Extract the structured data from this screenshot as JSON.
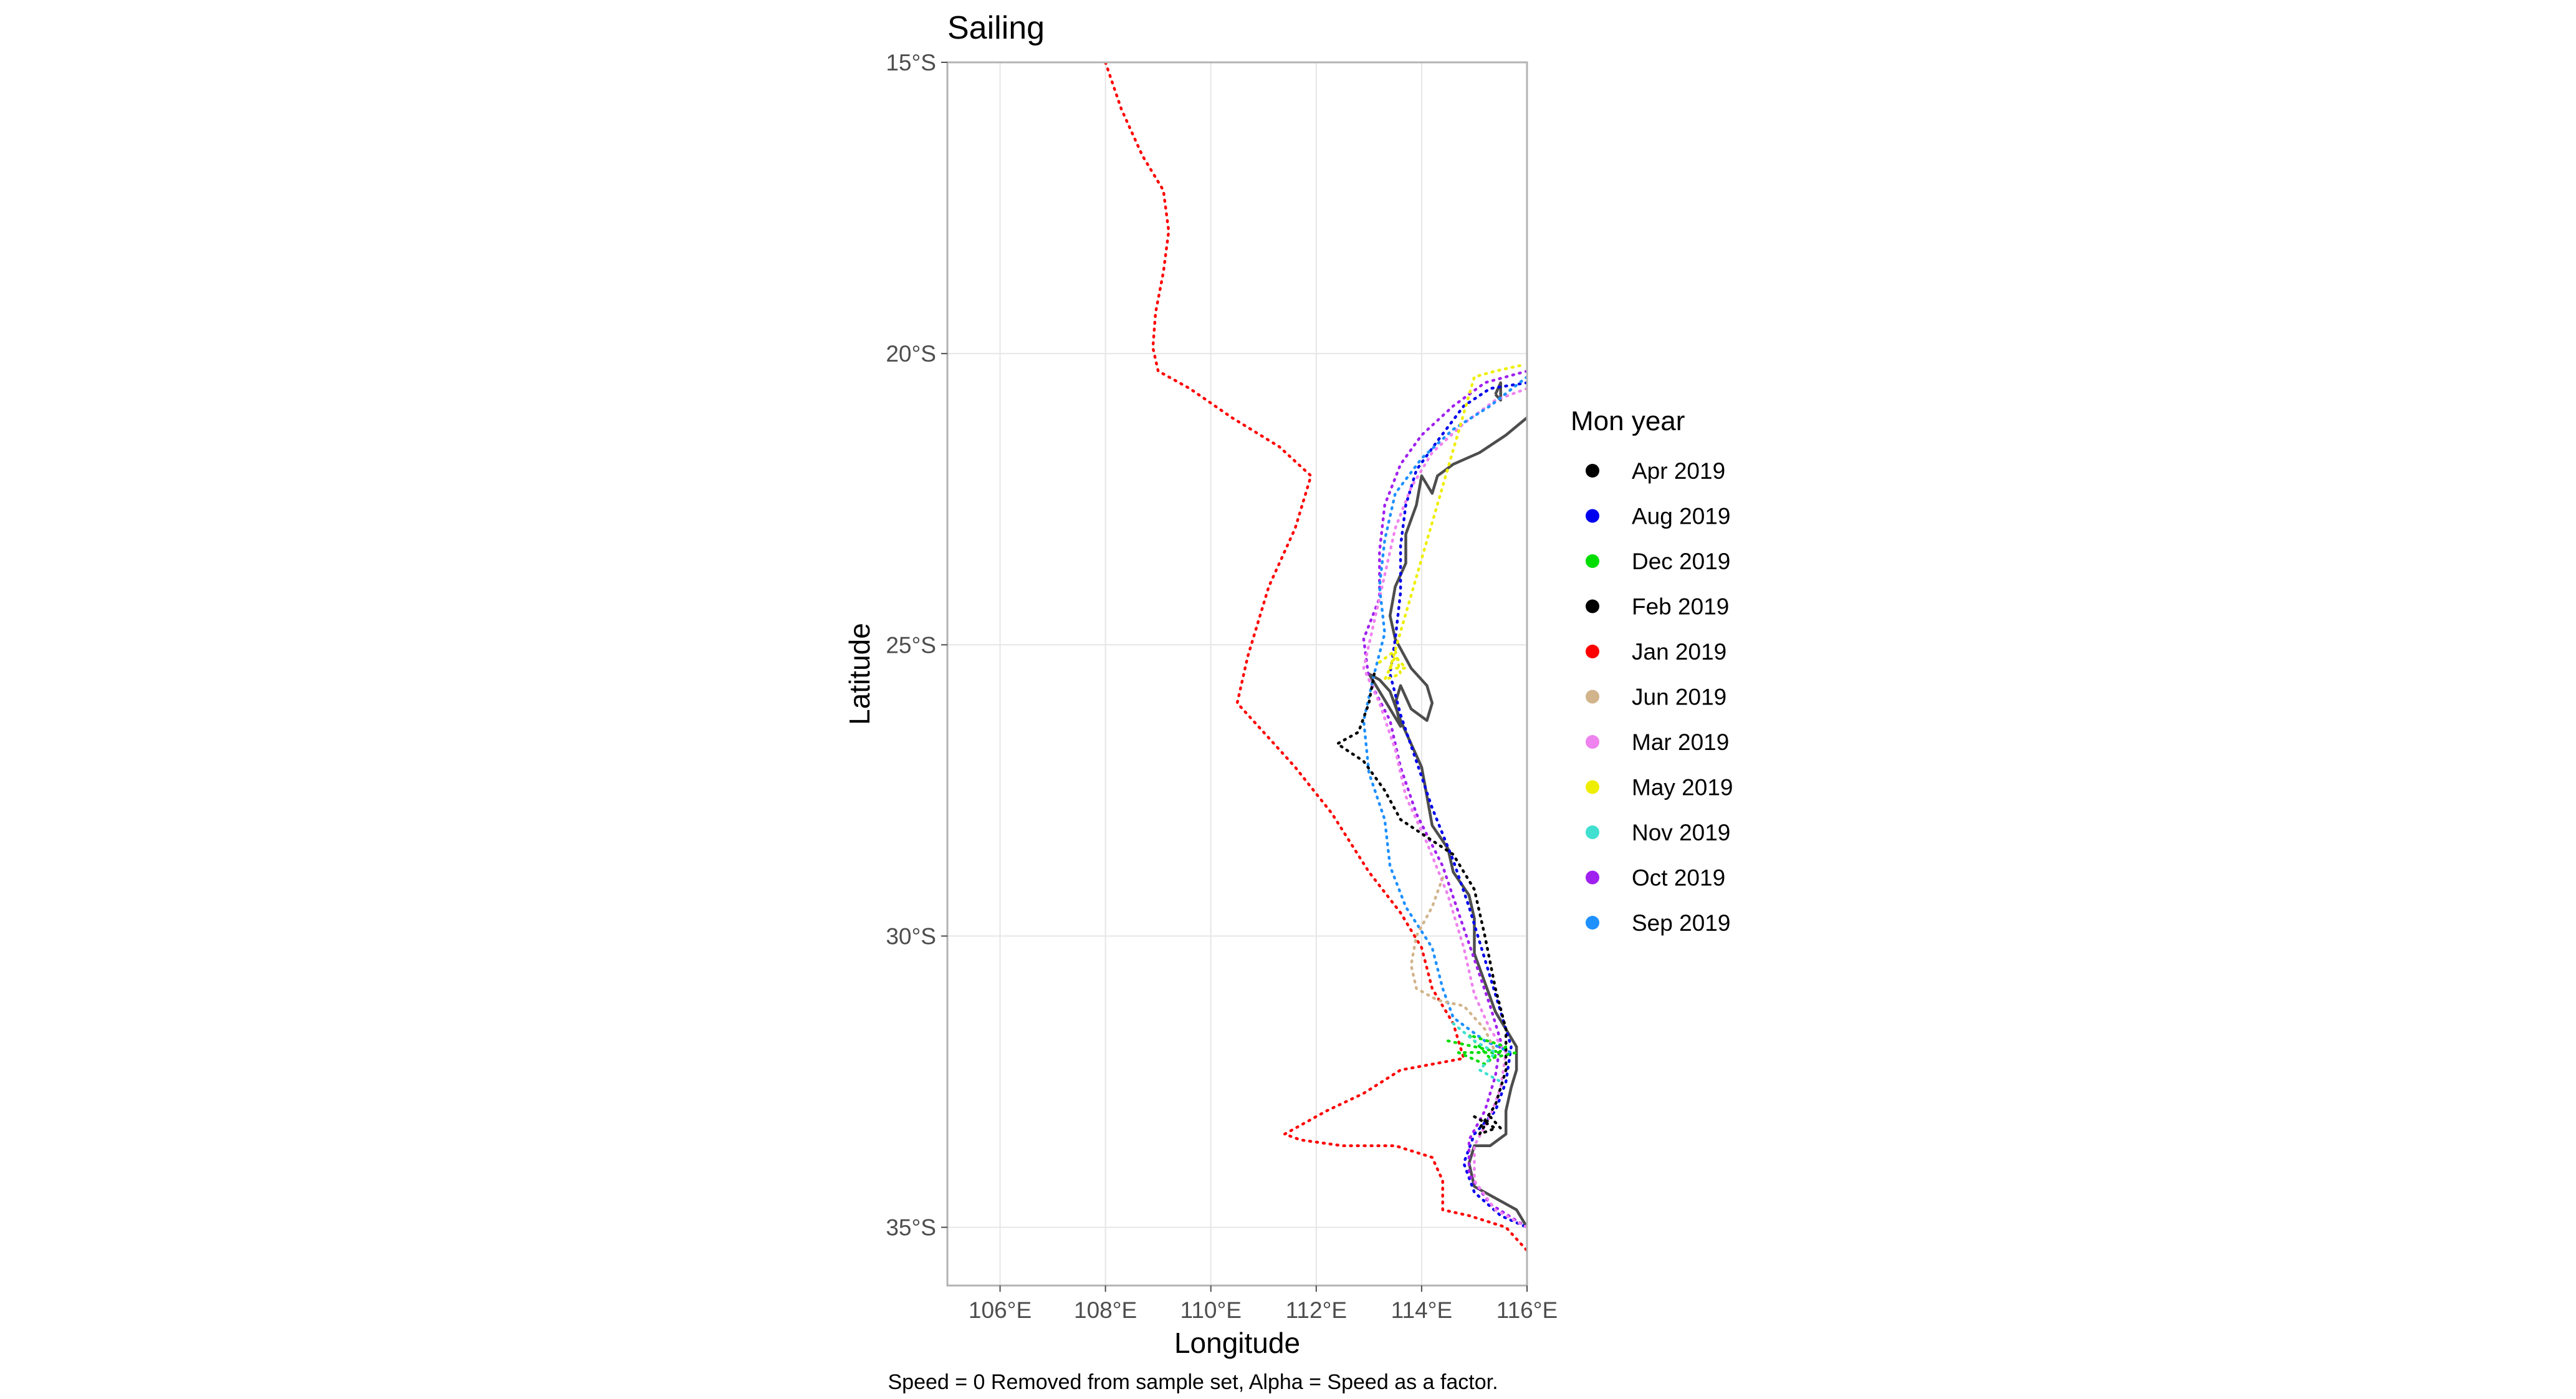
{
  "chart_data": {
    "type": "line",
    "title": "Sailing",
    "xlabel": "Longitude",
    "ylabel": "Latitude",
    "caption": "Speed = 0 Removed from sample set, Alpha = Speed as a factor.",
    "xlim": [
      105,
      116
    ],
    "ylim": [
      -36,
      -15
    ],
    "x_ticks": [
      106,
      108,
      110,
      112,
      114,
      116
    ],
    "x_tick_labels": [
      "106°E",
      "108°E",
      "110°E",
      "112°E",
      "114°E",
      "116°E"
    ],
    "y_ticks": [
      -15,
      -20,
      -25,
      -30,
      -35
    ],
    "y_tick_labels": [
      "15°S",
      "20°S",
      "25°S",
      "30°S",
      "35°S"
    ],
    "grid": true,
    "legend": {
      "title": "Mon year",
      "position": "right",
      "entries": [
        {
          "label": "Apr 2019",
          "color": "#000000"
        },
        {
          "label": "Aug 2019",
          "color": "#0000ee"
        },
        {
          "label": "Dec 2019",
          "color": "#00dd00"
        },
        {
          "label": "Feb 2019",
          "color": "#000000"
        },
        {
          "label": "Jan 2019",
          "color": "#ff0000"
        },
        {
          "label": "Jun 2019",
          "color": "#d2b48c"
        },
        {
          "label": "Mar 2019",
          "color": "#ee82ee"
        },
        {
          "label": "May 2019",
          "color": "#eeee00"
        },
        {
          "label": "Nov 2019",
          "color": "#40e0d0"
        },
        {
          "label": "Oct 2019",
          "color": "#a020f0"
        },
        {
          "label": "Sep 2019",
          "color": "#1e90ff"
        }
      ]
    },
    "coastline": [
      [
        [
          116.0,
          -21.1
        ],
        [
          115.6,
          -21.4
        ],
        [
          115.1,
          -21.7
        ],
        [
          114.6,
          -21.9
        ],
        [
          114.3,
          -22.1
        ],
        [
          114.2,
          -22.4
        ],
        [
          114.0,
          -22.1
        ],
        [
          113.9,
          -22.6
        ],
        [
          113.7,
          -23.1
        ],
        [
          113.7,
          -23.6
        ],
        [
          113.5,
          -24.0
        ],
        [
          113.4,
          -24.5
        ],
        [
          113.5,
          -24.9
        ],
        [
          113.8,
          -25.4
        ],
        [
          114.1,
          -25.7
        ],
        [
          114.2,
          -26.0
        ],
        [
          114.1,
          -26.3
        ],
        [
          113.8,
          -26.1
        ],
        [
          113.6,
          -25.7
        ],
        [
          113.5,
          -26.0
        ],
        [
          113.6,
          -26.4
        ],
        [
          113.4,
          -26.1
        ],
        [
          113.2,
          -25.8
        ],
        [
          113.0,
          -25.5
        ],
        [
          113.2,
          -25.6
        ],
        [
          113.4,
          -25.8
        ],
        [
          113.6,
          -26.3
        ],
        [
          113.8,
          -26.7
        ],
        [
          114.0,
          -27.1
        ],
        [
          114.1,
          -27.6
        ],
        [
          114.2,
          -28.1
        ],
        [
          114.5,
          -28.5
        ],
        [
          114.6,
          -28.9
        ],
        [
          114.9,
          -29.3
        ],
        [
          115.0,
          -29.7
        ],
        [
          115.0,
          -30.3
        ],
        [
          115.2,
          -30.8
        ],
        [
          115.4,
          -31.3
        ],
        [
          115.6,
          -31.6
        ],
        [
          115.8,
          -31.9
        ],
        [
          115.8,
          -32.3
        ],
        [
          115.7,
          -32.6
        ],
        [
          115.6,
          -33.0
        ],
        [
          115.6,
          -33.4
        ],
        [
          115.3,
          -33.6
        ],
        [
          115.0,
          -33.6
        ],
        [
          114.9,
          -33.9
        ],
        [
          115.0,
          -34.3
        ],
        [
          115.4,
          -34.5
        ],
        [
          115.8,
          -34.7
        ],
        [
          116.0,
          -35.0
        ]
      ],
      [
        [
          115.4,
          -20.7
        ],
        [
          115.5,
          -20.5
        ],
        [
          115.5,
          -20.8
        ],
        [
          115.4,
          -20.7
        ]
      ]
    ],
    "series": [
      {
        "name": "Jan 2019",
        "color": "#ff0000",
        "points": [
          [
            108.0,
            -15.0
          ],
          [
            108.3,
            -15.8
          ],
          [
            108.7,
            -16.6
          ],
          [
            109.1,
            -17.2
          ],
          [
            109.2,
            -17.9
          ],
          [
            109.1,
            -18.6
          ],
          [
            108.95,
            -19.3
          ],
          [
            108.9,
            -19.9
          ],
          [
            109.0,
            -20.3
          ],
          [
            109.6,
            -20.6
          ],
          [
            110.4,
            -21.1
          ],
          [
            111.3,
            -21.6
          ],
          [
            111.9,
            -22.1
          ],
          [
            111.6,
            -23.0
          ],
          [
            111.1,
            -24.0
          ],
          [
            110.7,
            -25.2
          ],
          [
            110.5,
            -26.0
          ],
          [
            111.0,
            -26.5
          ],
          [
            111.6,
            -27.1
          ],
          [
            112.3,
            -27.9
          ],
          [
            113.0,
            -28.9
          ],
          [
            113.6,
            -29.6
          ],
          [
            114.0,
            -30.2
          ],
          [
            114.2,
            -30.9
          ],
          [
            114.6,
            -31.5
          ],
          [
            114.8,
            -32.1
          ],
          [
            114.2,
            -32.2
          ],
          [
            113.6,
            -32.3
          ],
          [
            112.9,
            -32.7
          ],
          [
            112.2,
            -33.0
          ],
          [
            111.4,
            -33.4
          ],
          [
            111.7,
            -33.5
          ],
          [
            112.5,
            -33.6
          ],
          [
            113.5,
            -33.6
          ],
          [
            114.2,
            -33.8
          ],
          [
            114.4,
            -34.2
          ],
          [
            114.4,
            -34.7
          ],
          [
            114.9,
            -34.8
          ],
          [
            115.6,
            -35.0
          ],
          [
            116.0,
            -35.4
          ]
        ]
      },
      {
        "name": "Aug 2019",
        "color": "#0000ee",
        "points": [
          [
            116.0,
            -20.5
          ],
          [
            115.3,
            -20.6
          ],
          [
            114.8,
            -20.9
          ],
          [
            114.3,
            -21.5
          ],
          [
            113.9,
            -22.0
          ],
          [
            113.7,
            -22.6
          ],
          [
            113.6,
            -23.3
          ],
          [
            113.6,
            -24.1
          ],
          [
            113.5,
            -24.9
          ],
          [
            113.4,
            -25.5
          ],
          [
            113.6,
            -26.2
          ],
          [
            113.9,
            -27.0
          ],
          [
            114.2,
            -27.8
          ],
          [
            114.6,
            -28.7
          ],
          [
            114.9,
            -29.5
          ],
          [
            115.2,
            -30.4
          ],
          [
            115.5,
            -31.3
          ],
          [
            115.7,
            -31.9
          ],
          [
            115.6,
            -32.5
          ],
          [
            115.4,
            -33.0
          ],
          [
            115.0,
            -33.4
          ],
          [
            114.8,
            -33.9
          ],
          [
            115.0,
            -34.4
          ],
          [
            115.5,
            -34.8
          ],
          [
            116.0,
            -35.0
          ]
        ]
      },
      {
        "name": "Oct 2019",
        "color": "#a020f0",
        "points": [
          [
            116.0,
            -20.3
          ],
          [
            115.2,
            -20.5
          ],
          [
            114.6,
            -20.9
          ],
          [
            114.0,
            -21.4
          ],
          [
            113.6,
            -21.9
          ],
          [
            113.3,
            -22.6
          ],
          [
            113.2,
            -23.4
          ],
          [
            113.2,
            -24.2
          ],
          [
            112.9,
            -24.9
          ],
          [
            113.0,
            -25.6
          ],
          [
            113.4,
            -26.3
          ],
          [
            113.6,
            -27.1
          ],
          [
            113.9,
            -27.9
          ],
          [
            114.4,
            -28.8
          ],
          [
            114.7,
            -29.6
          ],
          [
            115.0,
            -30.4
          ],
          [
            115.3,
            -31.2
          ],
          [
            115.5,
            -31.8
          ],
          [
            115.4,
            -32.4
          ],
          [
            115.2,
            -33.0
          ],
          [
            114.9,
            -33.5
          ],
          [
            114.9,
            -34.1
          ],
          [
            115.3,
            -34.6
          ],
          [
            116.0,
            -35.0
          ]
        ]
      },
      {
        "name": "Mar 2019",
        "color": "#ee82ee",
        "points": [
          [
            116.0,
            -20.6
          ],
          [
            115.4,
            -20.8
          ],
          [
            114.8,
            -21.2
          ],
          [
            114.2,
            -21.7
          ],
          [
            113.8,
            -22.3
          ],
          [
            113.5,
            -23.0
          ],
          [
            113.3,
            -23.8
          ],
          [
            113.1,
            -24.6
          ],
          [
            112.9,
            -25.4
          ],
          [
            113.2,
            -26.0
          ],
          [
            113.5,
            -26.8
          ],
          [
            113.7,
            -27.6
          ],
          [
            114.1,
            -28.4
          ],
          [
            114.5,
            -29.3
          ],
          [
            114.8,
            -30.2
          ],
          [
            115.0,
            -31.0
          ],
          [
            115.3,
            -31.6
          ],
          [
            115.6,
            -32.0
          ],
          [
            115.5,
            -32.6
          ],
          [
            115.3,
            -33.1
          ],
          [
            115.0,
            -33.6
          ],
          [
            115.0,
            -34.2
          ],
          [
            115.4,
            -34.7
          ],
          [
            116.0,
            -35.0
          ]
        ]
      },
      {
        "name": "Sep 2019",
        "color": "#1e90ff",
        "points": [
          [
            116.0,
            -20.4
          ],
          [
            115.3,
            -20.9
          ],
          [
            114.6,
            -21.3
          ],
          [
            114.0,
            -21.8
          ],
          [
            113.5,
            -22.4
          ],
          [
            113.3,
            -23.2
          ],
          [
            113.2,
            -24.0
          ],
          [
            113.3,
            -24.8
          ],
          [
            113.1,
            -25.5
          ],
          [
            112.9,
            -26.3
          ],
          [
            113.0,
            -27.2
          ],
          [
            113.3,
            -28.0
          ],
          [
            113.4,
            -28.8
          ],
          [
            113.7,
            -29.5
          ],
          [
            114.2,
            -30.2
          ],
          [
            114.4,
            -30.9
          ],
          [
            114.6,
            -31.4
          ],
          [
            115.2,
            -31.8
          ],
          [
            115.7,
            -32.0
          ]
        ]
      },
      {
        "name": "Feb 2019",
        "color": "#000000",
        "points": [
          [
            113.1,
            -25.5
          ],
          [
            113.0,
            -26.0
          ],
          [
            112.8,
            -26.5
          ],
          [
            112.4,
            -26.7
          ],
          [
            112.9,
            -27.0
          ],
          [
            113.3,
            -27.5
          ],
          [
            113.6,
            -28.0
          ],
          [
            114.1,
            -28.3
          ],
          [
            114.6,
            -28.6
          ],
          [
            115.0,
            -29.2
          ],
          [
            115.2,
            -30.0
          ],
          [
            115.4,
            -30.9
          ],
          [
            115.6,
            -31.6
          ],
          [
            115.6,
            -32.3
          ],
          [
            115.4,
            -32.9
          ],
          [
            115.1,
            -33.3
          ]
        ]
      },
      {
        "name": "Apr 2019",
        "color": "#000000",
        "points": [
          [
            115.0,
            -33.1
          ],
          [
            115.2,
            -33.2
          ],
          [
            115.4,
            -33.3
          ],
          [
            115.1,
            -33.4
          ],
          [
            115.3,
            -33.1
          ],
          [
            115.5,
            -33.3
          ]
        ]
      },
      {
        "name": "Jun 2019",
        "color": "#d2b48c",
        "points": [
          [
            114.4,
            -29.0
          ],
          [
            114.2,
            -29.5
          ],
          [
            113.9,
            -30.0
          ],
          [
            113.8,
            -30.5
          ],
          [
            113.9,
            -30.9
          ],
          [
            114.3,
            -31.1
          ],
          [
            114.8,
            -31.2
          ],
          [
            115.2,
            -31.6
          ],
          [
            115.4,
            -32.0
          ]
        ]
      },
      {
        "name": "May 2019",
        "color": "#eeee00",
        "points": [
          [
            113.2,
            -25.3
          ],
          [
            113.5,
            -25.1
          ],
          [
            113.6,
            -25.5
          ],
          [
            113.3,
            -25.6
          ],
          [
            113.5,
            -25.2
          ],
          [
            113.7,
            -25.4
          ],
          [
            113.4,
            -25.4
          ],
          [
            115.0,
            -20.4
          ],
          [
            115.4,
            -20.3
          ],
          [
            115.9,
            -20.2
          ]
        ]
      },
      {
        "name": "Dec 2019",
        "color": "#00dd00",
        "points": [
          [
            114.5,
            -31.8
          ],
          [
            115.0,
            -31.9
          ],
          [
            115.5,
            -32.0
          ],
          [
            114.7,
            -32.0
          ],
          [
            115.2,
            -32.2
          ],
          [
            115.6,
            -31.9
          ],
          [
            114.9,
            -31.7
          ],
          [
            115.3,
            -32.1
          ],
          [
            115.8,
            -32.0
          ]
        ]
      },
      {
        "name": "Nov 2019",
        "color": "#40e0d0",
        "points": [
          [
            114.6,
            -31.5
          ],
          [
            115.0,
            -31.8
          ],
          [
            115.4,
            -32.0
          ],
          [
            115.1,
            -32.3
          ],
          [
            115.5,
            -32.5
          ]
        ]
      }
    ]
  }
}
